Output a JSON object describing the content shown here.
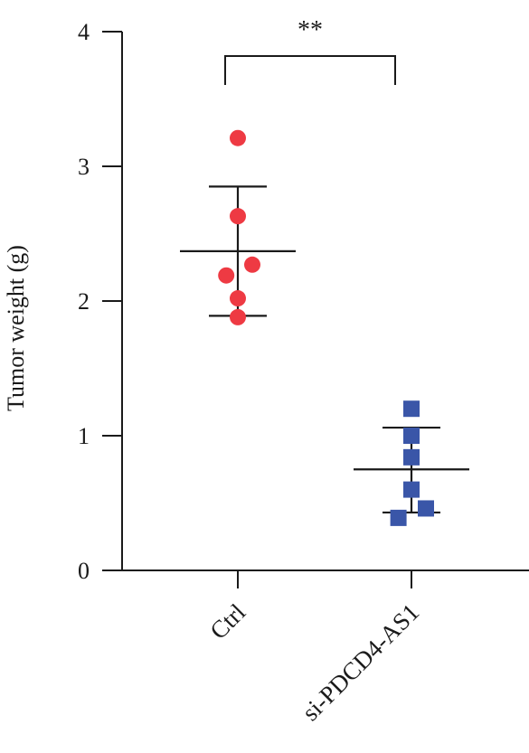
{
  "chart_data": {
    "type": "scatter",
    "ylabel": "Tumor weight (g)",
    "ylim": [
      0,
      4
    ],
    "yticks": [
      "0",
      "1",
      "2",
      "3",
      "4"
    ],
    "categories": [
      "Ctrl",
      "si-PDCD4-AS1"
    ],
    "series": [
      {
        "category": "Ctrl",
        "marker": "circle",
        "color": "#ee3a43",
        "points": [
          {
            "jitter": 0.0,
            "y": 3.21
          },
          {
            "jitter": 0.0,
            "y": 2.63
          },
          {
            "jitter": 0.1,
            "y": 2.27
          },
          {
            "jitter": -0.08,
            "y": 2.19
          },
          {
            "jitter": 0.0,
            "y": 2.02
          },
          {
            "jitter": 0.0,
            "y": 1.88
          }
        ],
        "mean": 2.37,
        "error_upper": 2.85,
        "error_lower": 1.89
      },
      {
        "category": "si-PDCD4-AS1",
        "marker": "square",
        "color": "#3a56a8",
        "points": [
          {
            "jitter": 0.0,
            "y": 1.2
          },
          {
            "jitter": 0.0,
            "y": 1.0
          },
          {
            "jitter": 0.0,
            "y": 0.84
          },
          {
            "jitter": 0.0,
            "y": 0.6
          },
          {
            "jitter": 0.1,
            "y": 0.46
          },
          {
            "jitter": -0.09,
            "y": 0.39
          }
        ],
        "mean": 0.75,
        "error_upper": 1.06,
        "error_lower": 0.43
      }
    ],
    "significance": {
      "label": "**",
      "between": [
        "Ctrl",
        "si-PDCD4-AS1"
      ]
    }
  }
}
